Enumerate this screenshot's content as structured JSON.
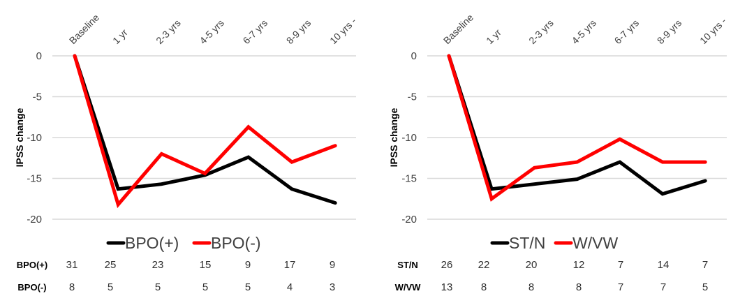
{
  "chart_data": [
    {
      "type": "line",
      "title": "",
      "xlabel": "",
      "ylabel": "IPSS change",
      "ylim": [
        -20,
        0
      ],
      "yticks": [
        0,
        -5,
        -10,
        -15,
        -20
      ],
      "grid": true,
      "legend_position": "bottom",
      "categories": [
        "Baseline",
        "1 yr",
        "2-3 yrs",
        "4-5 yrs",
        "6-7 yrs",
        "8-9 yrs",
        "10 yrs -"
      ],
      "series": [
        {
          "name": "BPO(+)",
          "color": "#000000",
          "values": [
            0,
            -16.3,
            -15.7,
            -14.6,
            -12.4,
            -16.3,
            -18.0
          ]
        },
        {
          "name": "BPO(-)",
          "color": "#ff0000",
          "values": [
            0,
            -18.2,
            -12.0,
            -14.4,
            -8.7,
            -13.0,
            -11.0
          ]
        }
      ],
      "table": {
        "rows": [
          {
            "label": "BPO(+)",
            "values": [
              31,
              25,
              23,
              15,
              9,
              17,
              9
            ]
          },
          {
            "label": "BPO(-)",
            "values": [
              8,
              5,
              5,
              5,
              5,
              4,
              3
            ]
          }
        ]
      }
    },
    {
      "type": "line",
      "title": "",
      "xlabel": "",
      "ylabel": "IPSS change",
      "ylim": [
        -20,
        0
      ],
      "yticks": [
        0,
        -5,
        -10,
        -15,
        -20
      ],
      "grid": true,
      "legend_position": "bottom",
      "categories": [
        "Baseline",
        "1 yr",
        "2-3 yrs",
        "4-5 yrs",
        "6-7 yrs",
        "8-9 yrs",
        "10 yrs -"
      ],
      "series": [
        {
          "name": "ST/N",
          "color": "#000000",
          "values": [
            0,
            -16.3,
            -15.7,
            -15.1,
            -13.0,
            -16.9,
            -15.3
          ]
        },
        {
          "name": "W/VW",
          "color": "#ff0000",
          "values": [
            0,
            -17.5,
            -13.7,
            -13.0,
            -10.2,
            -13.0,
            -13.0
          ]
        }
      ],
      "table": {
        "rows": [
          {
            "label": "ST/N",
            "values": [
              26,
              22,
              20,
              12,
              7,
              14,
              7
            ]
          },
          {
            "label": "W/VW",
            "values": [
              13,
              8,
              8,
              8,
              7,
              7,
              5
            ]
          }
        ]
      }
    }
  ]
}
